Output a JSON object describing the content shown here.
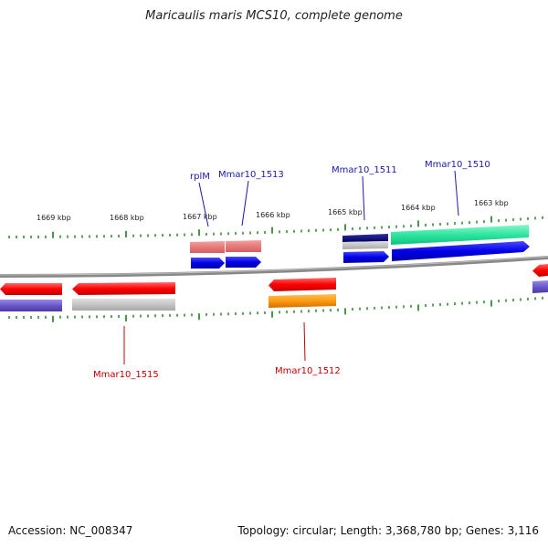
{
  "title": "Maricaulis maris MCS10, complete genome",
  "footer": {
    "accession": "Accession: NC_008347",
    "summary": "Topology: circular; Length: 3,368,780 bp; Genes: 3,116"
  },
  "scale_labels": [
    "1669 kbp",
    "1668 kbp",
    "1667 kbp",
    "1666 kbp",
    "1665 kbp",
    "1664 kbp",
    "1663 kbp"
  ],
  "gene_labels": {
    "top": [
      "rplM",
      "Mmar10_1513",
      "Mmar10_1511",
      "Mmar10_1510"
    ],
    "bottom": [
      "Mmar10_1515",
      "Mmar10_1512"
    ]
  },
  "colors": {
    "forward_label": "#1a1aa6",
    "reverse_label": "#c00000",
    "cds_forward": "#0000e0",
    "cds_reverse": "#ff0000",
    "tick": "#1f7a1f",
    "backbone": "#808080"
  }
}
